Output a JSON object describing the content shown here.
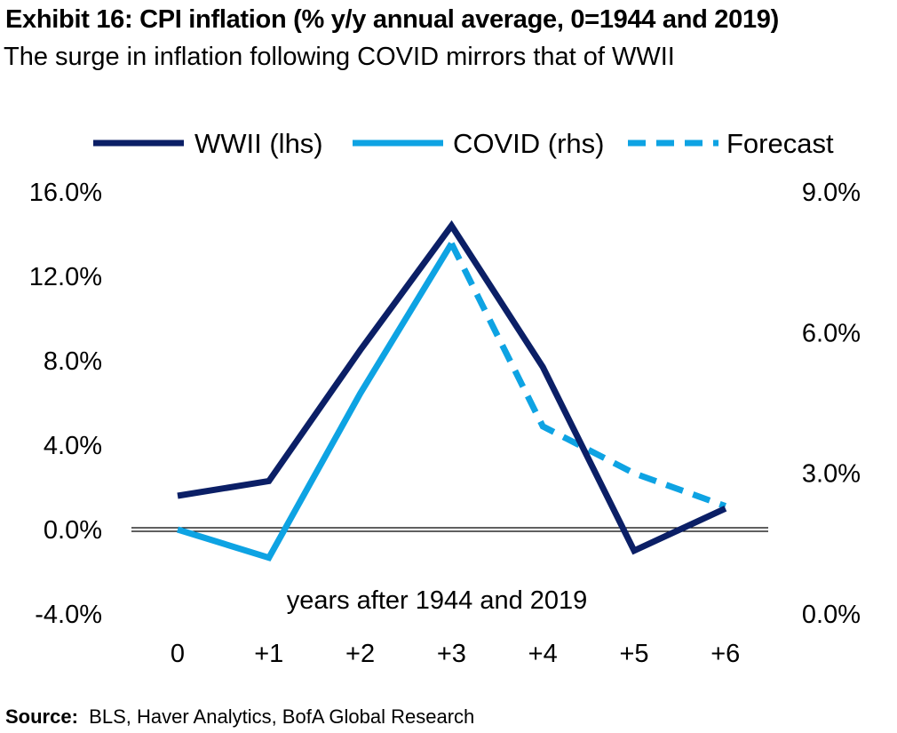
{
  "title": "Exhibit 16: CPI inflation (% y/y annual average, 0=1944 and 2019)",
  "subtitle": "The surge in inflation following COVID mirrors that of WWII",
  "source_label": "Source:",
  "source_text": "BLS, Haver Analytics, BofA Global Research",
  "chart_data": {
    "type": "line",
    "xlabel": "years after 1944 and 2019",
    "categories": [
      "0",
      "+1",
      "+2",
      "+3",
      "+4",
      "+5",
      "+6"
    ],
    "y_left": {
      "ylim": [
        -4,
        16
      ],
      "ticks": [
        -4,
        0,
        4,
        8,
        12,
        16
      ],
      "tick_labels": [
        "-4.0%",
        "0.0%",
        "4.0%",
        "8.0%",
        "12.0%",
        "16.0%"
      ]
    },
    "y_right": {
      "ylim": [
        0,
        9
      ],
      "ticks": [
        0,
        3,
        6,
        9
      ],
      "tick_labels": [
        "0.0%",
        "3.0%",
        "6.0%",
        "9.0%"
      ]
    },
    "legend_position": "top",
    "series": [
      {
        "name": "WWII (lhs)",
        "axis": "left",
        "style": "solid",
        "color": "#0b1f66",
        "x": [
          0,
          1,
          2,
          3,
          4,
          5,
          6
        ],
        "values": [
          1.6,
          2.3,
          8.5,
          14.4,
          7.7,
          -1.0,
          1.0
        ]
      },
      {
        "name": "COVID (rhs)",
        "axis": "right",
        "style": "solid",
        "color": "#0ea3e3",
        "x": [
          0,
          1,
          2,
          3
        ],
        "values": [
          1.8,
          1.2,
          4.7,
          7.9
        ]
      },
      {
        "name": "Forecast",
        "axis": "right",
        "style": "dashed",
        "color": "#0ea3e3",
        "x": [
          3,
          4,
          5,
          6
        ],
        "values": [
          7.9,
          4.0,
          3.0,
          2.3
        ]
      }
    ]
  }
}
